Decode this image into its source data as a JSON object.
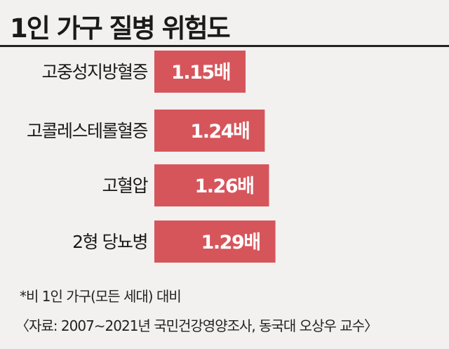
{
  "title": "1인 가구 질병 위험도",
  "chart_data": {
    "type": "bar",
    "orientation": "horizontal",
    "categories": [
      "고중성지방혈증",
      "고콜레스테롤혈증",
      "고혈압",
      "2형 당뇨병"
    ],
    "values": [
      1.15,
      1.24,
      1.26,
      1.29
    ],
    "value_labels": [
      "1.15배",
      "1.24배",
      "1.26배",
      "1.29배"
    ],
    "bar_color": "#d6555b",
    "label_color": "#ffffff",
    "grid": false,
    "legend": "none"
  },
  "footnotes": {
    "note": "*비 1인 가구(모든 세대) 대비",
    "source": "〈자료: 2007∼2021년 국민건강영양조사, 동국대 오상우 교수〉"
  }
}
